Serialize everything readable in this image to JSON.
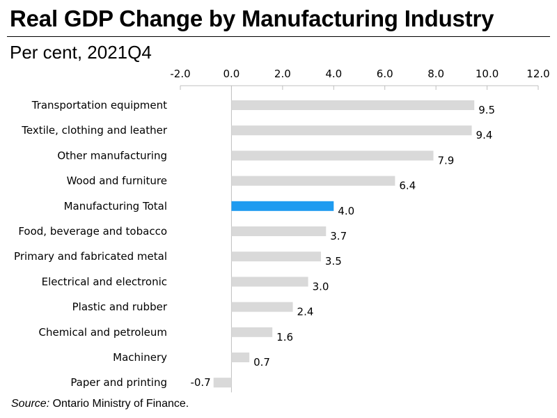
{
  "header": {
    "title": "Real GDP Change by Manufacturing Industry",
    "subtitle": "Per cent, 2021Q4"
  },
  "footer": {
    "source_label": "Source:",
    "source_text": " Ontario Ministry of Finance."
  },
  "chart_data": {
    "type": "bar",
    "orientation": "horizontal",
    "title": "Real GDP Change by Manufacturing Industry",
    "subtitle": "Per cent, 2021Q4",
    "xlabel": "",
    "ylabel": "",
    "xlim": [
      -2.0,
      12.0
    ],
    "ticks": [
      -2.0,
      0.0,
      2.0,
      4.0,
      6.0,
      8.0,
      10.0,
      12.0
    ],
    "tick_labels": [
      "-2.0",
      "0.0",
      "2.0",
      "4.0",
      "6.0",
      "8.0",
      "10.0",
      "12.0"
    ],
    "axis_position": "top",
    "grid": false,
    "categories": [
      "Transportation equipment",
      "Textile, clothing and leather",
      "Other manufacturing",
      "Wood and furniture",
      "Manufacturing Total",
      "Food, beverage and tobacco",
      "Primary and fabricated metal",
      "Electrical and electronic",
      "Plastic and rubber",
      "Chemical and petroleum",
      "Machinery",
      "Paper and printing"
    ],
    "values": [
      9.5,
      9.4,
      7.9,
      6.4,
      4.0,
      3.7,
      3.5,
      3.0,
      2.4,
      1.6,
      0.7,
      -0.7
    ],
    "value_labels": [
      "9.5",
      "9.4",
      "7.9",
      "6.4",
      "4.0",
      "3.7",
      "3.5",
      "3.0",
      "2.4",
      "1.6",
      "0.7",
      "-0.7"
    ],
    "highlight": "Manufacturing Total",
    "colors": {
      "bar": "#d9d9d9",
      "highlight": "#1e9bf0",
      "axis": "#bfbfbf"
    }
  }
}
